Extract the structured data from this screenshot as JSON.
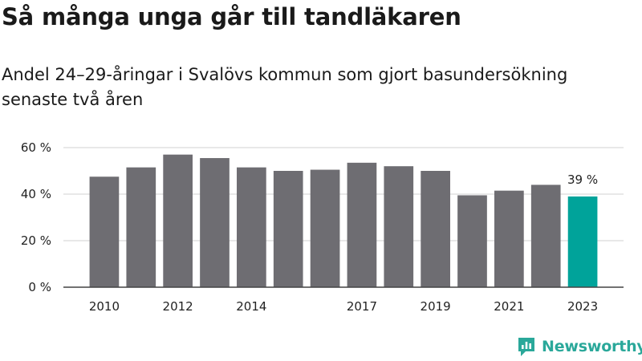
{
  "title": "Så många unga går till tandläkaren",
  "subtitle": "Andel 24–29-åringar i Svalövs kommun som gjort basundersökning senaste två åren",
  "brand": {
    "name": "Newsworthy",
    "color": "#2aa89a",
    "icon": "newsworthy-logo-icon"
  },
  "chart_data": {
    "type": "bar",
    "categories": [
      "2010",
      "2011",
      "2012",
      "2013",
      "2014",
      "2015",
      "2016",
      "2017",
      "2018",
      "2019",
      "2020",
      "2021",
      "2022",
      "2023"
    ],
    "values": [
      47.5,
      51.5,
      57,
      55.5,
      51.5,
      50,
      50.5,
      53.5,
      52,
      50,
      39.5,
      41.5,
      44,
      39
    ],
    "x_tick_labels": [
      "2010",
      "",
      "2012",
      "",
      "2014",
      "",
      "",
      "2017",
      "",
      "2019",
      "",
      "2021",
      "",
      "2023"
    ],
    "y_ticks": [
      0,
      20,
      40,
      60
    ],
    "y_tick_labels": [
      "0 %",
      "20 %",
      "40 %",
      "60 %"
    ],
    "ylim": [
      0,
      60
    ],
    "grid": true,
    "bar_color": "#6e6d72",
    "highlight_color": "#00a39a",
    "highlight_index": 13,
    "data_labels": [
      {
        "index": 13,
        "text": "39 %"
      }
    ],
    "xlabel": "",
    "ylabel": ""
  }
}
